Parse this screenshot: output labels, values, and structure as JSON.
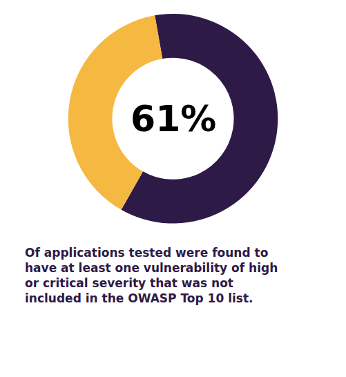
{
  "chart_data": {
    "type": "pie",
    "values": [
      61,
      39
    ],
    "colors": [
      "#2e1a47",
      "#f5b942"
    ],
    "annotations": [
      {
        "text": "61%",
        "color": "#000000"
      },
      {
        "text": "Of applications tested were found to\nhave at least one vulnerability of high\nor critical severity that was not\nincluded in the OWASP Top 10 list.",
        "color": "#2e1a47"
      }
    ]
  }
}
